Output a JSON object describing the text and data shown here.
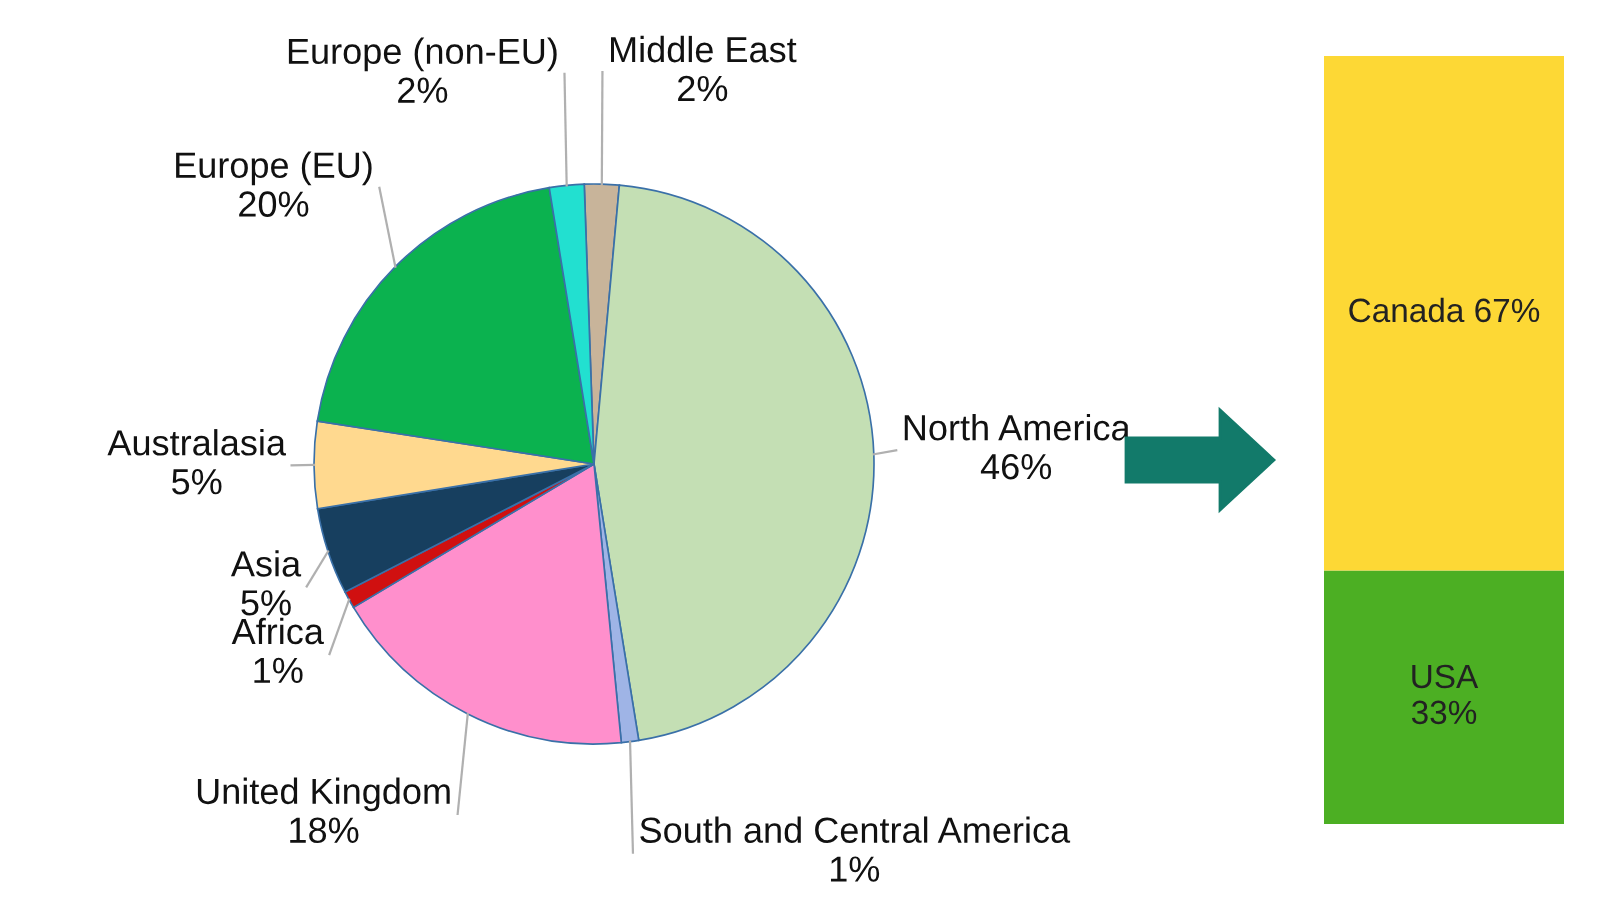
{
  "chart_data": [
    {
      "type": "pie",
      "categories": [
        "Middle East",
        "North America",
        "South and Central America",
        "United Kingdom",
        "Africa",
        "Asia",
        "Australasia",
        "Europe (EU)",
        "Europe (non-EU)"
      ],
      "values": [
        2,
        46,
        1,
        18,
        1,
        5,
        5,
        20,
        2
      ],
      "value_labels": [
        "2%",
        "46%",
        "1%",
        "18%",
        "1%",
        "5%",
        "5%",
        "20%",
        "2%"
      ],
      "colors": [
        "#c8b49a",
        "#c4dfb4",
        "#9fb4e6",
        "#ff8fcc",
        "#d01010",
        "#173f5f",
        "#ffd98f",
        "#0bb24f",
        "#22e0d0"
      ]
    },
    {
      "type": "bar",
      "stacked": true,
      "categories": [
        null
      ],
      "series": [
        {
          "name": "USA",
          "color": "#4caf23",
          "values": [
            33
          ],
          "value_labels": [
            "33%"
          ]
        },
        {
          "name": "Canada",
          "color": "#fdd835",
          "values": [
            67
          ],
          "value_labels": [
            "67%"
          ]
        }
      ]
    }
  ]
}
